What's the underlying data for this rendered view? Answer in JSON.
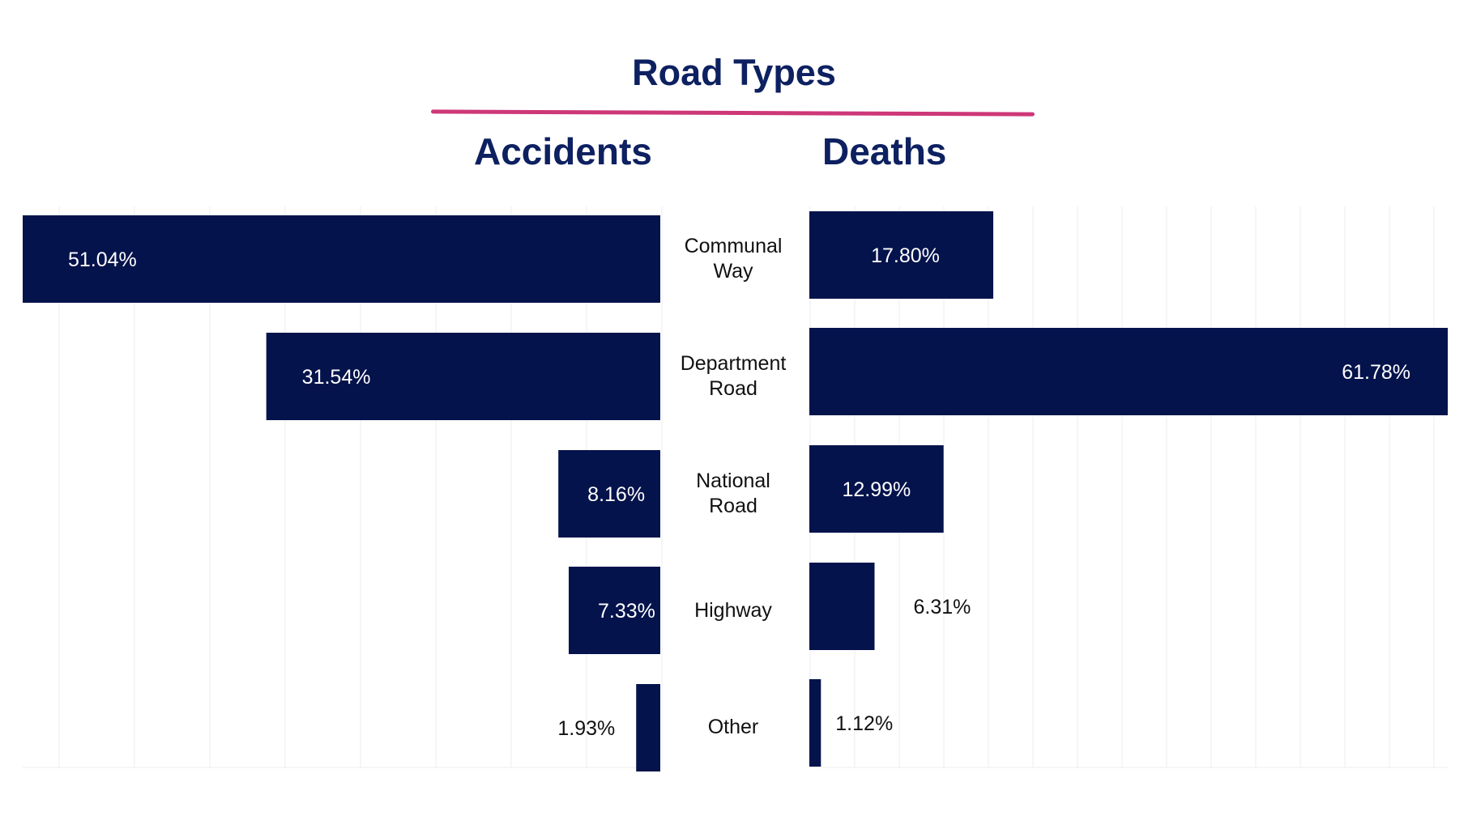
{
  "header": {
    "title": "Road Types",
    "left_subtitle": "Accidents",
    "right_subtitle": "Deaths"
  },
  "categories": [
    {
      "lines": [
        "Communal",
        "Way"
      ]
    },
    {
      "lines": [
        "Department",
        "Road"
      ]
    },
    {
      "lines": [
        "National",
        "Road"
      ]
    },
    {
      "lines": [
        "Highway"
      ]
    },
    {
      "lines": [
        "Other"
      ]
    }
  ],
  "colors": {
    "bar": "#05134c",
    "title": "#0d2060",
    "divider": "#cd3778",
    "grid": "#ececf1"
  },
  "chart_data": [
    {
      "type": "bar",
      "orientation": "horizontal",
      "title": "Accidents",
      "categories": [
        "Communal Way",
        "Department Road",
        "National Road",
        "Highway",
        "Other"
      ],
      "values": [
        51.04,
        31.54,
        8.16,
        7.33,
        1.93
      ],
      "labels": [
        "51.04%",
        "31.54%",
        "8.16%",
        "7.33%",
        "1.93%"
      ],
      "unit": "%",
      "xlim": [
        0,
        51.04
      ],
      "direction": "right-to-left",
      "grid": true
    },
    {
      "type": "bar",
      "orientation": "horizontal",
      "title": "Deaths",
      "categories": [
        "Communal Way",
        "Department Road",
        "National Road",
        "Highway",
        "Other"
      ],
      "values": [
        17.8,
        61.78,
        12.99,
        6.31,
        1.12
      ],
      "labels": [
        "17.80%",
        "61.78%",
        "12.99%",
        "6.31%",
        "1.12%"
      ],
      "unit": "%",
      "xlim": [
        0,
        61.78
      ],
      "direction": "left-to-right",
      "grid": true
    }
  ]
}
